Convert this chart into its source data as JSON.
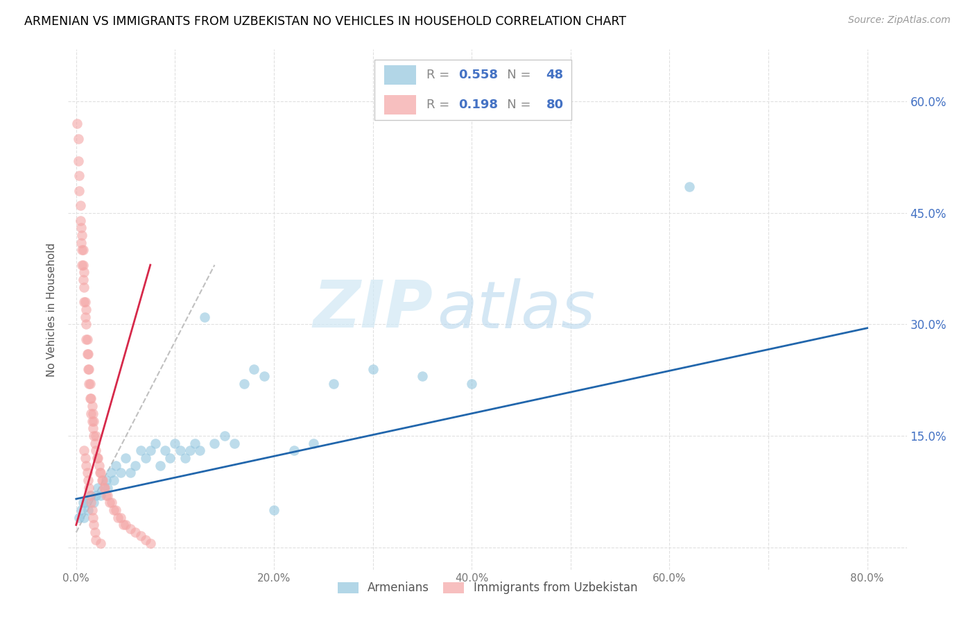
{
  "title": "ARMENIAN VS IMMIGRANTS FROM UZBEKISTAN NO VEHICLES IN HOUSEHOLD CORRELATION CHART",
  "source": "Source: ZipAtlas.com",
  "ylabel": "No Vehicles in Household",
  "y_ticks": [
    0.0,
    0.15,
    0.3,
    0.45,
    0.6
  ],
  "y_tick_labels_right": [
    "",
    "15.0%",
    "30.0%",
    "45.0%",
    "60.0%"
  ],
  "x_ticks": [
    0.0,
    0.1,
    0.2,
    0.3,
    0.4,
    0.5,
    0.6,
    0.7,
    0.8
  ],
  "x_tick_labels": [
    "0.0%",
    "",
    "20.0%",
    "",
    "40.0%",
    "",
    "60.0%",
    "",
    "80.0%"
  ],
  "xlim": [
    -0.008,
    0.84
  ],
  "ylim": [
    -0.03,
    0.67
  ],
  "watermark_zip": "ZIP",
  "watermark_atlas": "atlas",
  "legend_blue_r": "0.558",
  "legend_blue_n": "48",
  "legend_pink_r": "0.198",
  "legend_pink_n": "80",
  "blue_color": "#92c5de",
  "pink_color": "#f4a5a5",
  "trend_blue_color": "#2166ac",
  "trend_pink_color": "#d6294a",
  "trend_pink_dashed_color": "#c0c0c0",
  "blue_scatter_x": [
    0.003,
    0.005,
    0.007,
    0.008,
    0.01,
    0.012,
    0.015,
    0.018,
    0.02,
    0.022,
    0.025,
    0.03,
    0.032,
    0.035,
    0.038,
    0.04,
    0.045,
    0.05,
    0.055,
    0.06,
    0.065,
    0.07,
    0.075,
    0.08,
    0.085,
    0.09,
    0.095,
    0.1,
    0.105,
    0.11,
    0.115,
    0.12,
    0.125,
    0.13,
    0.14,
    0.15,
    0.16,
    0.17,
    0.18,
    0.19,
    0.2,
    0.22,
    0.24,
    0.26,
    0.3,
    0.35,
    0.4,
    0.62
  ],
  "blue_scatter_y": [
    0.04,
    0.05,
    0.06,
    0.04,
    0.06,
    0.05,
    0.07,
    0.06,
    0.07,
    0.08,
    0.07,
    0.09,
    0.08,
    0.1,
    0.09,
    0.11,
    0.1,
    0.12,
    0.1,
    0.11,
    0.13,
    0.12,
    0.13,
    0.14,
    0.11,
    0.13,
    0.12,
    0.14,
    0.13,
    0.12,
    0.13,
    0.14,
    0.13,
    0.31,
    0.14,
    0.15,
    0.14,
    0.22,
    0.24,
    0.23,
    0.05,
    0.13,
    0.14,
    0.22,
    0.24,
    0.23,
    0.22,
    0.485
  ],
  "pink_scatter_x": [
    0.001,
    0.002,
    0.002,
    0.003,
    0.003,
    0.004,
    0.004,
    0.005,
    0.005,
    0.006,
    0.006,
    0.006,
    0.007,
    0.007,
    0.007,
    0.008,
    0.008,
    0.008,
    0.009,
    0.009,
    0.01,
    0.01,
    0.01,
    0.011,
    0.011,
    0.012,
    0.012,
    0.013,
    0.013,
    0.014,
    0.014,
    0.015,
    0.015,
    0.016,
    0.016,
    0.017,
    0.017,
    0.018,
    0.018,
    0.019,
    0.02,
    0.02,
    0.021,
    0.022,
    0.023,
    0.024,
    0.025,
    0.026,
    0.027,
    0.028,
    0.029,
    0.03,
    0.032,
    0.034,
    0.036,
    0.038,
    0.04,
    0.042,
    0.045,
    0.048,
    0.05,
    0.055,
    0.06,
    0.065,
    0.07,
    0.075,
    0.008,
    0.009,
    0.01,
    0.011,
    0.012,
    0.013,
    0.014,
    0.015,
    0.016,
    0.017,
    0.018,
    0.019,
    0.02,
    0.025
  ],
  "pink_scatter_y": [
    0.57,
    0.52,
    0.55,
    0.48,
    0.5,
    0.44,
    0.46,
    0.41,
    0.43,
    0.38,
    0.4,
    0.42,
    0.36,
    0.38,
    0.4,
    0.33,
    0.35,
    0.37,
    0.31,
    0.33,
    0.28,
    0.3,
    0.32,
    0.26,
    0.28,
    0.24,
    0.26,
    0.22,
    0.24,
    0.2,
    0.22,
    0.18,
    0.2,
    0.17,
    0.19,
    0.16,
    0.18,
    0.15,
    0.17,
    0.14,
    0.13,
    0.15,
    0.12,
    0.12,
    0.11,
    0.1,
    0.1,
    0.09,
    0.09,
    0.08,
    0.08,
    0.07,
    0.07,
    0.06,
    0.06,
    0.05,
    0.05,
    0.04,
    0.04,
    0.03,
    0.03,
    0.025,
    0.02,
    0.015,
    0.01,
    0.005,
    0.13,
    0.12,
    0.11,
    0.1,
    0.09,
    0.08,
    0.07,
    0.06,
    0.05,
    0.04,
    0.03,
    0.02,
    0.01,
    0.005
  ],
  "blue_trend_x": [
    0.0,
    0.8
  ],
  "blue_trend_y": [
    0.065,
    0.295
  ],
  "pink_trend_x": [
    0.0,
    0.075
  ],
  "pink_trend_y": [
    0.03,
    0.38
  ],
  "pink_dashed_trend_x": [
    0.0,
    0.14
  ],
  "pink_dashed_trend_y": [
    0.02,
    0.38
  ],
  "legend_label_blue": "Armenians",
  "legend_label_pink": "Immigrants from Uzbekistan",
  "grid_color": "#e0e0e0",
  "background_color": "#ffffff"
}
